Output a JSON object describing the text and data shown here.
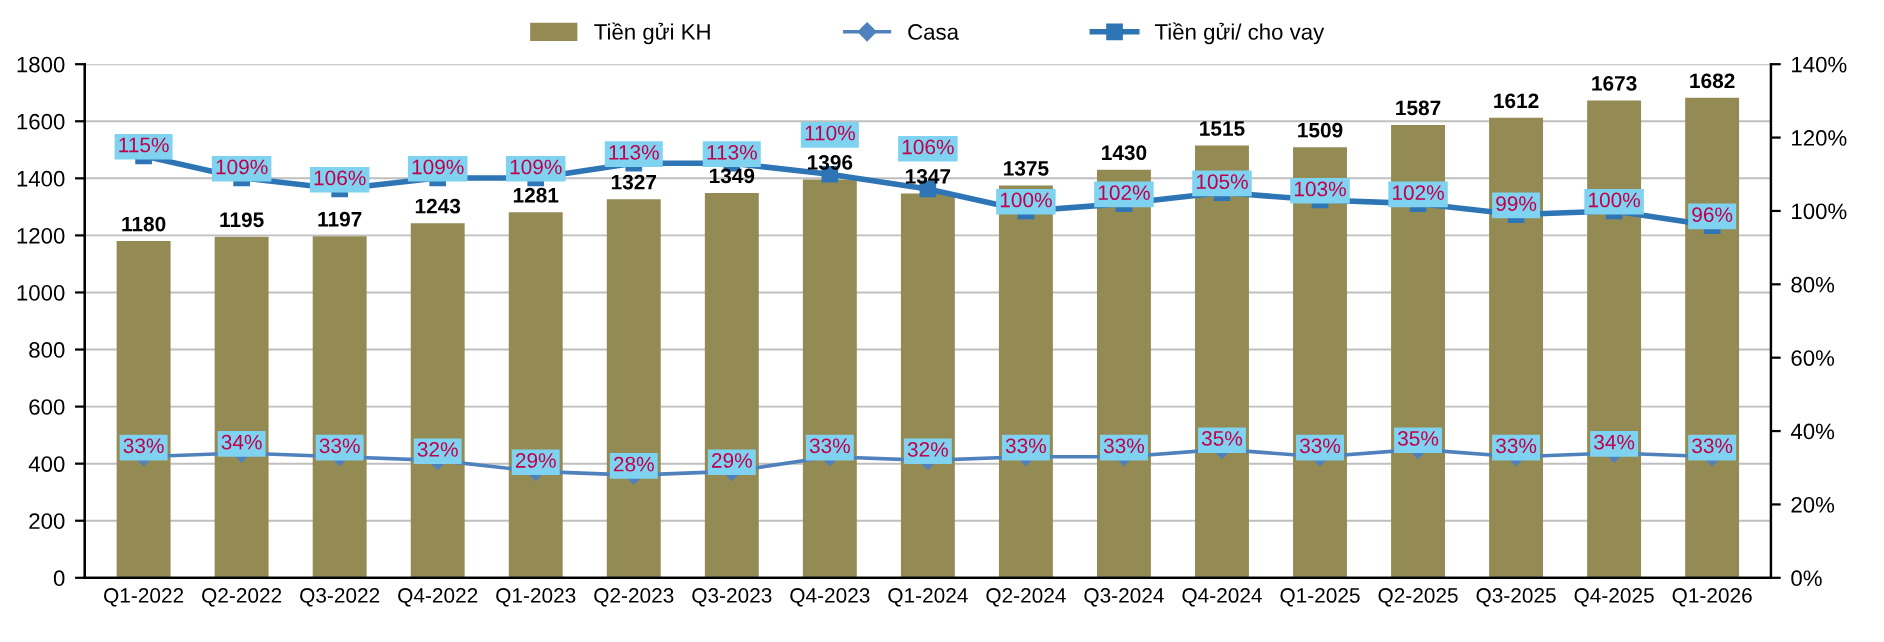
{
  "chart_data": {
    "type": "bar",
    "categories": [
      "Q1-2022",
      "Q2-2022",
      "Q3-2022",
      "Q4-2022",
      "Q1-2023",
      "Q2-2023",
      "Q3-2023",
      "Q4-2023",
      "Q1-2024",
      "Q2-2024",
      "Q3-2024",
      "Q4-2024",
      "Q1-2025",
      "Q2-2025",
      "Q3-2025",
      "Q4-2025",
      "Q1-2026"
    ],
    "series": [
      {
        "name": "Tiền gửi KH",
        "color": "#948a54",
        "values": [
          1180,
          1195,
          1197,
          1243,
          1281,
          1327,
          1349,
          1396,
          1347,
          1375,
          1430,
          1515,
          1509,
          1587,
          1612,
          1673,
          1682
        ],
        "value_labels": [
          "1180",
          "1195",
          "1197",
          "1243",
          "1281",
          "1327",
          "1349",
          "1396",
          "1347",
          "1375",
          "1430",
          "1515",
          "1509",
          "1587",
          "1612",
          "1673",
          "1682"
        ]
      },
      {
        "name": "Casa",
        "type": "line",
        "axis": "y2",
        "marker": "diamond",
        "color": "#4f81bd",
        "values": [
          33,
          34,
          33,
          32,
          29,
          28,
          29,
          33,
          32,
          33,
          33,
          35,
          33,
          35,
          33,
          34,
          33
        ],
        "value_labels": [
          "33%",
          "34%",
          "33%",
          "32%",
          "29%",
          "28%",
          "29%",
          "33%",
          "32%",
          "33%",
          "33%",
          "35%",
          "33%",
          "35%",
          "33%",
          "34%",
          "33%"
        ]
      },
      {
        "name": "Tiền gửi/ cho vay",
        "type": "line",
        "axis": "y2",
        "marker": "square",
        "color": "#2e75b6",
        "values": [
          115,
          109,
          106,
          109,
          109,
          113,
          113,
          110,
          106,
          100,
          102,
          105,
          103,
          102,
          99,
          100,
          96
        ],
        "value_labels": [
          "115%",
          "109%",
          "106%",
          "109%",
          "109%",
          "113%",
          "113%",
          "110%",
          "106%",
          "100%",
          "102%",
          "105%",
          "103%",
          "102%",
          "99%",
          "100%",
          "96%"
        ]
      }
    ],
    "ylim": [
      0,
      1800
    ],
    "yticks": [
      0,
      200,
      400,
      600,
      800,
      1000,
      1200,
      1400,
      1600,
      1800
    ],
    "y2lim": [
      0,
      140
    ],
    "y2ticks": [
      {
        "value": 0,
        "label": "0%"
      },
      {
        "value": 20,
        "label": "20%"
      },
      {
        "value": 40,
        "label": "40%"
      },
      {
        "value": 60,
        "label": "60%"
      },
      {
        "value": 80,
        "label": "80%"
      },
      {
        "value": 100,
        "label": "100%"
      },
      {
        "value": 120,
        "label": "120%"
      },
      {
        "value": 140,
        "label": "140%"
      }
    ],
    "grid": "y",
    "legend": "top",
    "line_style": "solid"
  }
}
